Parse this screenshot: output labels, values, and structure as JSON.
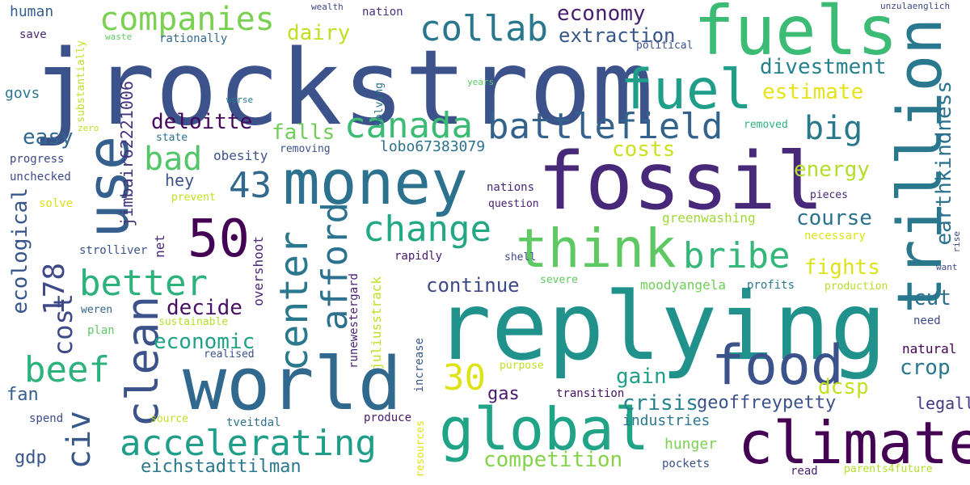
{
  "words": [
    {
      "text": "jrockstrom",
      "color": "#3b528b"
    },
    {
      "text": "replying",
      "color": "#21918c"
    },
    {
      "text": "fossil",
      "color": "#482878"
    },
    {
      "text": "fuels",
      "color": "#3cbb75"
    },
    {
      "text": "money",
      "color": "#2c728e"
    },
    {
      "text": "world",
      "color": "#31688e"
    },
    {
      "text": "climate",
      "color": "#440154"
    },
    {
      "text": "trillion",
      "color": "#2a788e"
    },
    {
      "text": "fuel",
      "color": "#1f9e89"
    },
    {
      "text": "global",
      "color": "#20a386"
    },
    {
      "text": "think",
      "color": "#5ec962"
    },
    {
      "text": "food",
      "color": "#3b528b"
    },
    {
      "text": "battlefield",
      "color": "#33638d"
    },
    {
      "text": "use",
      "color": "#355f8d"
    },
    {
      "text": "companies",
      "color": "#7ad151"
    },
    {
      "text": "collab",
      "color": "#2a788e"
    },
    {
      "text": "canada",
      "color": "#3cbb75"
    },
    {
      "text": "change",
      "color": "#22a884"
    },
    {
      "text": "accelerating",
      "color": "#1f9e89"
    },
    {
      "text": "50",
      "color": "#440154"
    },
    {
      "text": "clean",
      "color": "#3b528b"
    },
    {
      "text": "center",
      "color": "#2a788e"
    },
    {
      "text": "afford",
      "color": "#2c728e"
    },
    {
      "text": "bribe",
      "color": "#35b779"
    },
    {
      "text": "better",
      "color": "#2db27d"
    },
    {
      "text": "beef",
      "color": "#2db27d"
    },
    {
      "text": "civ",
      "color": "#38588c"
    },
    {
      "text": "bad",
      "color": "#54c568"
    },
    {
      "text": "big",
      "color": "#2a788e"
    },
    {
      "text": "178",
      "color": "#3e4989"
    },
    {
      "text": "43",
      "color": "#31688e"
    },
    {
      "text": "30",
      "color": "#dde318"
    },
    {
      "text": "cost",
      "color": "#3e4989"
    },
    {
      "text": "earthkindness",
      "color": "#2c728e"
    },
    {
      "text": "divestment",
      "color": "#26828e"
    },
    {
      "text": "economy",
      "color": "#481f70"
    },
    {
      "text": "extraction",
      "color": "#39568c"
    },
    {
      "text": "dairy",
      "color": "#c2df23"
    },
    {
      "text": "deloitte",
      "color": "#46085c"
    },
    {
      "text": "falls",
      "color": "#6ece58"
    },
    {
      "text": "lobo67383079",
      "color": "#2c728e"
    },
    {
      "text": "estimate",
      "color": "#e5e419"
    },
    {
      "text": "costs",
      "color": "#cae11f"
    },
    {
      "text": "energy",
      "color": "#b5de2b"
    },
    {
      "text": "course",
      "color": "#2c728e"
    },
    {
      "text": "fights",
      "color": "#dde318"
    },
    {
      "text": "continue",
      "color": "#3e4989"
    },
    {
      "text": "decide",
      "color": "#471063"
    },
    {
      "text": "economic",
      "color": "#20a386"
    },
    {
      "text": "ecological",
      "color": "#39568c"
    },
    {
      "text": "easy",
      "color": "#31688e"
    },
    {
      "text": "jimbair62221006",
      "color": "#46337e"
    },
    {
      "text": "cut",
      "color": "#2c728e"
    },
    {
      "text": "crop",
      "color": "#2a788e"
    },
    {
      "text": "dcsp",
      "color": "#c2df23"
    },
    {
      "text": "gain",
      "color": "#1f9e89"
    },
    {
      "text": "gas",
      "color": "#481a6c"
    },
    {
      "text": "crisis",
      "color": "#26828e"
    },
    {
      "text": "geoffreypetty",
      "color": "#3b528b"
    },
    {
      "text": "legally",
      "color": "#443983"
    },
    {
      "text": "industries",
      "color": "#2a788e"
    },
    {
      "text": "hunger",
      "color": "#7ad151"
    },
    {
      "text": "competition",
      "color": "#84d44b"
    },
    {
      "text": "eichstadttilman",
      "color": "#2a788e"
    },
    {
      "text": "fan",
      "color": "#355f8d"
    },
    {
      "text": "gdp",
      "color": "#38588c"
    },
    {
      "text": "human",
      "color": "#355f8d"
    },
    {
      "text": "save",
      "color": "#482878"
    },
    {
      "text": "govs",
      "color": "#2a788e"
    },
    {
      "text": "progress",
      "color": "#3e4989"
    },
    {
      "text": "unchecked",
      "color": "#3e4989"
    },
    {
      "text": "solve",
      "color": "#dde318"
    },
    {
      "text": "strolliver",
      "color": "#3b528b"
    },
    {
      "text": "weren",
      "color": "#31688e"
    },
    {
      "text": "plan",
      "color": "#5ec962"
    },
    {
      "text": "spend",
      "color": "#3e4989"
    },
    {
      "text": "zero",
      "color": "#c2df23"
    },
    {
      "text": "substantially",
      "color": "#c2df23"
    },
    {
      "text": "waste",
      "color": "#5ec962"
    },
    {
      "text": "rationally",
      "color": "#31688e"
    },
    {
      "text": "wealth",
      "color": "#3e4989"
    },
    {
      "text": "nation",
      "color": "#46337e"
    },
    {
      "text": "worse",
      "color": "#2a788e"
    },
    {
      "text": "solving",
      "color": "#2c728e"
    },
    {
      "text": "state",
      "color": "#2c728e"
    },
    {
      "text": "obesity",
      "color": "#3b528b"
    },
    {
      "text": "removing",
      "color": "#3b528b"
    },
    {
      "text": "hey",
      "color": "#3b528b"
    },
    {
      "text": "prevent",
      "color": "#c2df23"
    },
    {
      "text": "net",
      "color": "#482878"
    },
    {
      "text": "overshoot",
      "color": "#482878"
    },
    {
      "text": "sustainable",
      "color": "#b5de2b"
    },
    {
      "text": "realised",
      "color": "#3b528b"
    },
    {
      "text": "juliusstrack",
      "color": "#c2df23"
    },
    {
      "text": "runewestergard",
      "color": "#481f70"
    },
    {
      "text": "increase",
      "color": "#39568c"
    },
    {
      "text": "source",
      "color": "#c2df23"
    },
    {
      "text": "tveitdal",
      "color": "#2c728e"
    },
    {
      "text": "produce",
      "color": "#481a6c"
    },
    {
      "text": "resources",
      "color": "#dde318"
    },
    {
      "text": "purpose",
      "color": "#c2df23"
    },
    {
      "text": "transition",
      "color": "#471063"
    },
    {
      "text": "pockets",
      "color": "#3b528b"
    },
    {
      "text": "read",
      "color": "#481f70"
    },
    {
      "text": "parents4future",
      "color": "#b5de2b"
    },
    {
      "text": "greenwashing",
      "color": "#a0da39"
    },
    {
      "text": "necessary",
      "color": "#dde318"
    },
    {
      "text": "nations",
      "color": "#482878"
    },
    {
      "text": "question",
      "color": "#481f70"
    },
    {
      "text": "political",
      "color": "#3b528b"
    },
    {
      "text": "years",
      "color": "#5ec962"
    },
    {
      "text": "removed",
      "color": "#2db27d"
    },
    {
      "text": "pieces",
      "color": "#482878"
    },
    {
      "text": "rapidly",
      "color": "#481a6c"
    },
    {
      "text": "shell",
      "color": "#3e4989"
    },
    {
      "text": "severe",
      "color": "#5ec962"
    },
    {
      "text": "moodyangela",
      "color": "#6ece58"
    },
    {
      "text": "profits",
      "color": "#2a788e"
    },
    {
      "text": "production",
      "color": "#b5de2b"
    },
    {
      "text": "rise",
      "color": "#3e4989"
    },
    {
      "text": "want",
      "color": "#3e4989"
    },
    {
      "text": "need",
      "color": "#3e4989"
    },
    {
      "text": "natural",
      "color": "#440154"
    },
    {
      "text": "unzulaenglich",
      "color": "#3e4989"
    }
  ]
}
